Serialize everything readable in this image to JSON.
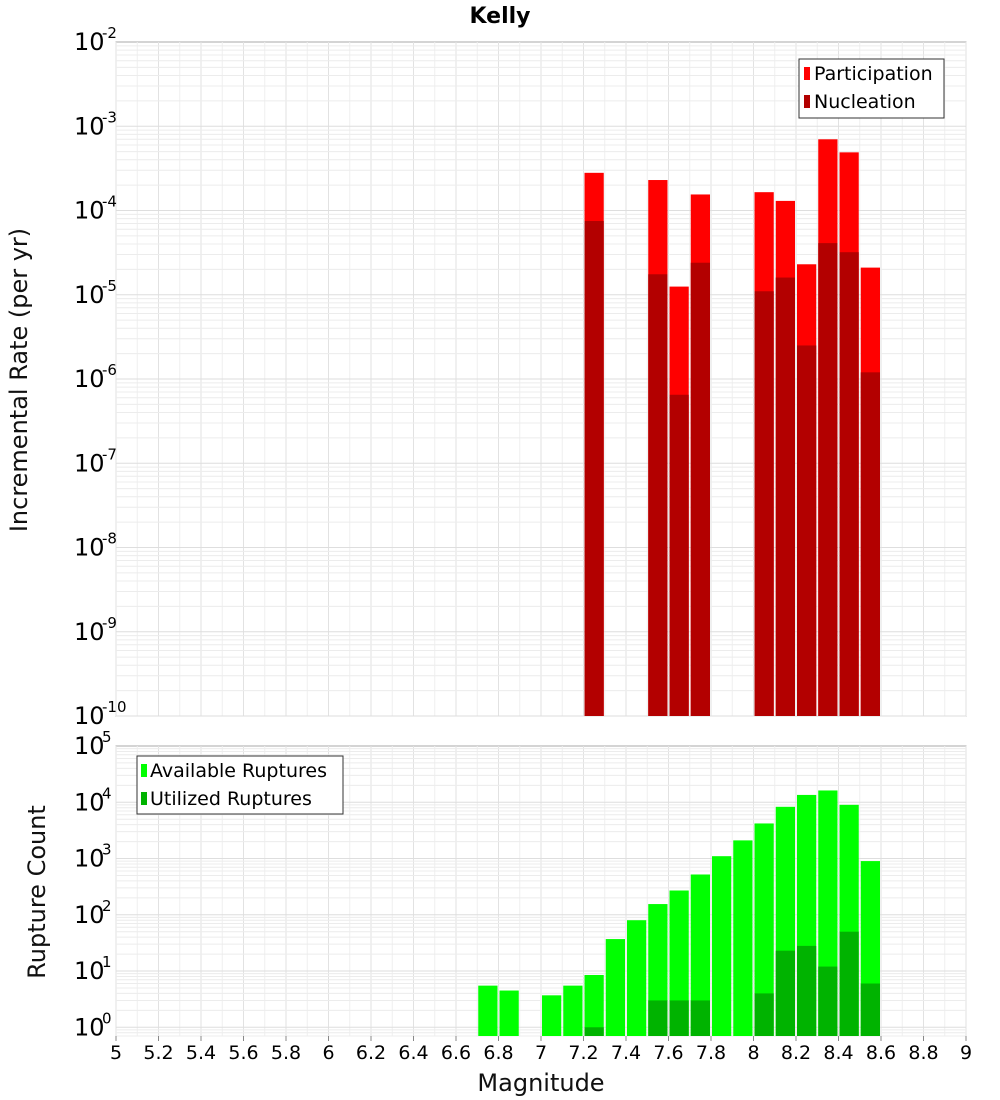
{
  "chart_data": [
    {
      "type": "bar",
      "title": "Kelly",
      "xlabel": "Magnitude",
      "ylabel": "Incremental Rate (per yr)",
      "yscale": "log",
      "ylim": [
        1e-10,
        0.01
      ],
      "xlim": [
        5,
        9
      ],
      "bin_width": 0.1,
      "x_ticks": [
        "5",
        "5.2",
        "5.4",
        "5.6",
        "5.8",
        "6",
        "6.2",
        "6.4",
        "6.6",
        "6.8",
        "7",
        "7.2",
        "7.4",
        "7.6",
        "7.8",
        "8",
        "8.2",
        "8.4",
        "8.6",
        "8.8",
        "9"
      ],
      "y_ticks": [
        {
          "base": "10",
          "exp": "-2"
        },
        {
          "base": "10",
          "exp": "-3"
        },
        {
          "base": "10",
          "exp": "-4"
        },
        {
          "base": "10",
          "exp": "-5"
        },
        {
          "base": "10",
          "exp": "-6"
        },
        {
          "base": "10",
          "exp": "-7"
        },
        {
          "base": "10",
          "exp": "-8"
        },
        {
          "base": "10",
          "exp": "-9"
        },
        {
          "base": "10",
          "exp": "-10"
        }
      ],
      "legend_position": "top-right",
      "series": [
        {
          "name": "Participation",
          "color": "#ff0000",
          "x": [
            7.25,
            7.55,
            7.65,
            7.75,
            8.05,
            8.15,
            8.25,
            8.35,
            8.45,
            8.55
          ],
          "values": [
            0.00028,
            0.00023,
            1.25e-05,
            0.000155,
            0.000165,
            0.00013,
            2.3e-05,
            0.0007,
            0.00049,
            2.1e-05
          ]
        },
        {
          "name": "Nucleation",
          "color": "#b30000",
          "x": [
            7.25,
            7.55,
            7.65,
            7.75,
            8.05,
            8.15,
            8.25,
            8.35,
            8.45,
            8.55
          ],
          "values": [
            7.5e-05,
            1.75e-05,
            6.5e-07,
            2.4e-05,
            1.1e-05,
            1.6e-05,
            2.5e-06,
            4.1e-05,
            3.2e-05,
            1.2e-06
          ]
        }
      ]
    },
    {
      "type": "bar",
      "title": "",
      "xlabel": "Magnitude",
      "ylabel": "Rupture Count",
      "yscale": "log",
      "ylim": [
        0.7,
        100000.0
      ],
      "xlim": [
        5,
        9
      ],
      "bin_width": 0.1,
      "y_ticks": [
        {
          "base": "10",
          "exp": "5"
        },
        {
          "base": "10",
          "exp": "4"
        },
        {
          "base": "10",
          "exp": "3"
        },
        {
          "base": "10",
          "exp": "2"
        },
        {
          "base": "10",
          "exp": "1"
        },
        {
          "base": "10",
          "exp": "0"
        }
      ],
      "legend_position": "top-left",
      "series": [
        {
          "name": "Available Ruptures",
          "color": "#00ff00",
          "x": [
            6.75,
            6.85,
            7.05,
            7.15,
            7.25,
            7.35,
            7.45,
            7.55,
            7.65,
            7.75,
            7.85,
            7.95,
            8.05,
            8.15,
            8.25,
            8.35,
            8.45,
            8.55
          ],
          "values": [
            5.5,
            4.5,
            3.7,
            5.5,
            8.5,
            37,
            80,
            155,
            270,
            520,
            1100,
            2100,
            4200,
            8300,
            13500,
            16200,
            9000,
            900
          ]
        },
        {
          "name": "Utilized Ruptures",
          "color": "#00b300",
          "x": [
            7.25,
            7.55,
            7.65,
            7.75,
            8.05,
            8.15,
            8.25,
            8.35,
            8.45,
            8.55
          ],
          "values": [
            1,
            3,
            3,
            3,
            4,
            23,
            28,
            12,
            50,
            6
          ]
        }
      ]
    }
  ]
}
